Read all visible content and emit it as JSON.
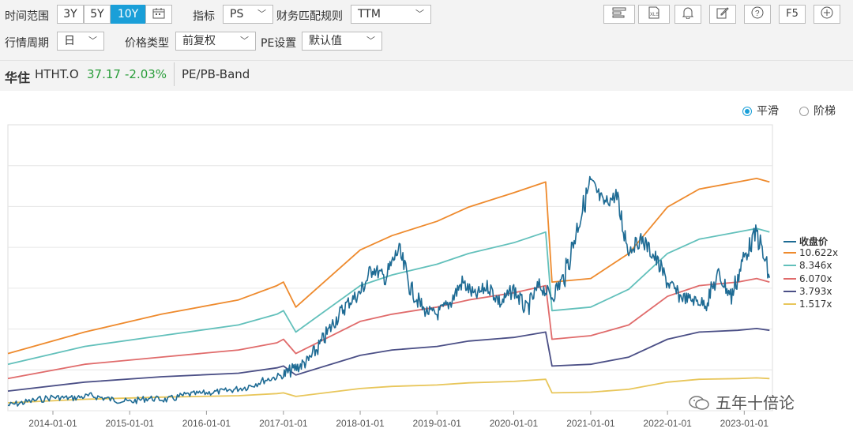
{
  "toolbar": {
    "time_range_label": "时间范围",
    "range_buttons": [
      "3Y",
      "5Y",
      "10Y"
    ],
    "active_range": "10Y",
    "indicator_label": "指标",
    "indicator_value": "PS",
    "match_rule_label": "财务匹配规则",
    "match_rule_value": "TTM",
    "period_label": "行情周期",
    "period_value": "日",
    "price_type_label": "价格类型",
    "price_type_value": "前复权",
    "pe_setting_label": "PE设置",
    "pe_setting_value": "默认值",
    "icons": [
      "layout-icon",
      "excel-export-icon",
      "bell-icon",
      "edit-icon",
      "help-icon",
      "refresh-icon",
      "add-icon"
    ],
    "f5_label": "F5"
  },
  "stock": {
    "name": "华住",
    "code": "HTHT.O",
    "price": "37.17",
    "change": "-2.03%",
    "chart_name": "PE/PB-Band"
  },
  "mode": {
    "smooth_label": "平滑",
    "step_label": "阶梯",
    "selected": "smooth"
  },
  "colors": {
    "accent": "#1a9fd8",
    "price_up": "#2a9d3a"
  },
  "watermark": "五年十倍论",
  "chart_data": {
    "type": "line",
    "x_ticks": [
      "2014-01-01",
      "2015-01-01",
      "2016-01-01",
      "2017-01-01",
      "2018-01-01",
      "2019-01-01",
      "2020-01-01",
      "2021-01-01",
      "2022-01-01",
      "2023-01-01"
    ],
    "x_range": [
      "2013-06-01",
      "2023-05-15"
    ],
    "ylim": [
      0,
      80
    ],
    "grid": true,
    "legend_position": "right",
    "series": [
      {
        "name": "收盘价",
        "color": "#1e6b94",
        "x": [
          "2013-06",
          "2013-09",
          "2014-01",
          "2014-04",
          "2014-07",
          "2014-10",
          "2015-01",
          "2015-04",
          "2015-07",
          "2015-10",
          "2016-01",
          "2016-04",
          "2016-07",
          "2016-10",
          "2017-01",
          "2017-03",
          "2017-05",
          "2017-07",
          "2017-09",
          "2017-11",
          "2018-01",
          "2018-03",
          "2018-05",
          "2018-07",
          "2018-09",
          "2018-11",
          "2019-01",
          "2019-03",
          "2019-05",
          "2019-07",
          "2019-09",
          "2019-11",
          "2020-01",
          "2020-03",
          "2020-05",
          "2020-07",
          "2020-09",
          "2020-11",
          "2021-01",
          "2021-03",
          "2021-05",
          "2021-07",
          "2021-09",
          "2021-11",
          "2022-01",
          "2022-03",
          "2022-05",
          "2022-07",
          "2022-09",
          "2022-11",
          "2023-01",
          "2023-03",
          "2023-05"
        ],
        "y": [
          1.5,
          2.5,
          3.8,
          3.5,
          4.2,
          3.2,
          2.5,
          3.5,
          3.0,
          4.5,
          5.0,
          5.5,
          6.5,
          8.5,
          10,
          12,
          14,
          19,
          25,
          30,
          33,
          40,
          37,
          45,
          34,
          28,
          27,
          30,
          36,
          32,
          35,
          30,
          34,
          28,
          35,
          32,
          38,
          52,
          64,
          58,
          60,
          45,
          48,
          43,
          36,
          32,
          31,
          30,
          38,
          32,
          43,
          50,
          37.2
        ]
      },
      {
        "name": "10.622x",
        "color": "#ee8a2d",
        "x": [
          "2013-06",
          "2014-06",
          "2015-06",
          "2016-06",
          "2016-12",
          "2017-01",
          "2017-03",
          "2018-01",
          "2018-06",
          "2019-01",
          "2019-06",
          "2020-01",
          "2020-06",
          "2020-07",
          "2021-01",
          "2021-07",
          "2022-01",
          "2022-06",
          "2022-12",
          "2023-03",
          "2023-05"
        ],
        "y": [
          16,
          22,
          27,
          31,
          35,
          36,
          29,
          45,
          49,
          53,
          57,
          61,
          64,
          36,
          37,
          44,
          57,
          62,
          64,
          65,
          64
        ]
      },
      {
        "name": "8.346x",
        "color": "#62c0bb",
        "x": [
          "2013-06",
          "2014-06",
          "2015-06",
          "2016-06",
          "2016-12",
          "2017-01",
          "2017-03",
          "2018-01",
          "2018-06",
          "2019-01",
          "2019-06",
          "2020-01",
          "2020-06",
          "2020-07",
          "2021-01",
          "2021-07",
          "2022-01",
          "2022-06",
          "2022-12",
          "2023-03",
          "2023-05"
        ],
        "y": [
          13,
          18,
          21,
          24,
          27,
          28,
          22,
          35,
          38,
          41,
          44,
          47,
          50,
          28,
          29,
          34,
          44,
          48,
          50,
          51,
          50
        ]
      },
      {
        "name": "6.070x",
        "color": "#e06b6b",
        "x": [
          "2013-06",
          "2014-06",
          "2015-06",
          "2016-06",
          "2016-12",
          "2017-01",
          "2017-03",
          "2018-01",
          "2018-06",
          "2019-01",
          "2019-06",
          "2020-01",
          "2020-06",
          "2020-07",
          "2021-01",
          "2021-07",
          "2022-01",
          "2022-06",
          "2022-12",
          "2023-03",
          "2023-05"
        ],
        "y": [
          9,
          13,
          15,
          17,
          19,
          20,
          16,
          25,
          27,
          29,
          31,
          33,
          35,
          20,
          21,
          24,
          32,
          35,
          36,
          37,
          36
        ]
      },
      {
        "name": "3.793x",
        "color": "#4b4f86",
        "x": [
          "2013-06",
          "2014-06",
          "2015-06",
          "2016-06",
          "2016-12",
          "2017-01",
          "2017-03",
          "2018-01",
          "2018-06",
          "2019-01",
          "2019-06",
          "2020-01",
          "2020-06",
          "2020-07",
          "2021-01",
          "2021-07",
          "2022-01",
          "2022-06",
          "2022-12",
          "2023-03",
          "2023-05"
        ],
        "y": [
          5.5,
          8,
          9.5,
          10.5,
          12,
          12.5,
          10,
          15.5,
          17,
          18,
          19.5,
          20.5,
          22,
          12.5,
          13,
          15,
          20,
          22,
          22.5,
          23,
          22.5
        ]
      },
      {
        "name": "1.517x",
        "color": "#e8c65a",
        "x": [
          "2013-06",
          "2014-06",
          "2015-06",
          "2016-06",
          "2016-12",
          "2017-01",
          "2017-03",
          "2018-01",
          "2018-06",
          "2019-01",
          "2019-06",
          "2020-01",
          "2020-06",
          "2020-07",
          "2021-01",
          "2021-07",
          "2022-01",
          "2022-06",
          "2022-12",
          "2023-03",
          "2023-05"
        ],
        "y": [
          2.2,
          3.2,
          3.8,
          4.2,
          4.8,
          5,
          4,
          6.2,
          6.8,
          7.2,
          7.8,
          8.2,
          8.8,
          5,
          5.2,
          6,
          8,
          8.8,
          9,
          9.2,
          9
        ]
      }
    ]
  }
}
